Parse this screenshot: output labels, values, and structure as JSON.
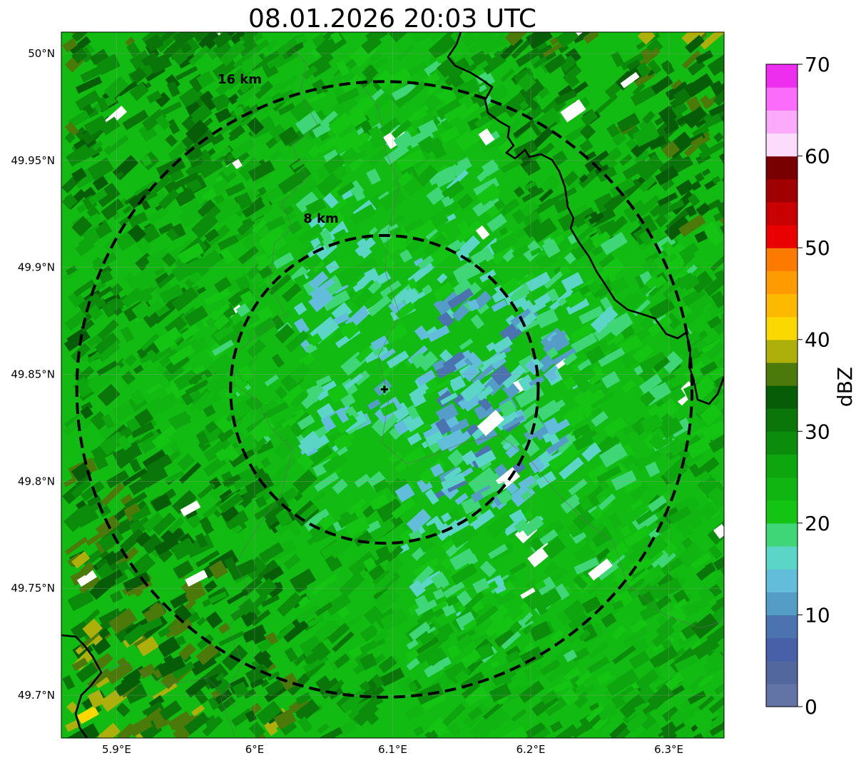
{
  "title": "08.01.2026 20:03 UTC",
  "map": {
    "lon_range": [
      5.86,
      6.34
    ],
    "lat_range": [
      49.68,
      50.01
    ],
    "lon_ticks": [
      {
        "value": 5.9,
        "label": "5.9°E"
      },
      {
        "value": 6.0,
        "label": "6°E"
      },
      {
        "value": 6.1,
        "label": "6.1°E"
      },
      {
        "value": 6.2,
        "label": "6.2°E"
      },
      {
        "value": 6.3,
        "label": "6.3°E"
      }
    ],
    "lat_ticks": [
      {
        "value": 50.0,
        "label": "50°N"
      },
      {
        "value": 49.95,
        "label": "49.95°N"
      },
      {
        "value": 49.9,
        "label": "49.9°N"
      },
      {
        "value": 49.85,
        "label": "49.85°N"
      },
      {
        "value": 49.8,
        "label": "49.8°N"
      },
      {
        "value": 49.75,
        "label": "49.75°N"
      },
      {
        "value": 49.7,
        "label": "49.7°N"
      }
    ],
    "radar_site": {
      "lon": 6.094,
      "lat": 49.843
    },
    "range_rings": [
      {
        "radius_km": 8,
        "label": "8 km"
      },
      {
        "radius_km": 16,
        "label": "16 km"
      }
    ],
    "grid": true
  },
  "colorbar": {
    "label": "dBZ",
    "min": 0,
    "max": 70,
    "step": 2.5,
    "ticks": [
      {
        "value": 0,
        "label": "0"
      },
      {
        "value": 10,
        "label": "10"
      },
      {
        "value": 20,
        "label": "20"
      },
      {
        "value": 30,
        "label": "30"
      },
      {
        "value": 40,
        "label": "40"
      },
      {
        "value": 50,
        "label": "50"
      },
      {
        "value": 60,
        "label": "60"
      },
      {
        "value": 70,
        "label": "70"
      }
    ],
    "colors": [
      "#6274a6",
      "#53679f",
      "#4760a7",
      "#4a73b0",
      "#549dc6",
      "#62bddb",
      "#5ad5c6",
      "#3ed677",
      "#13c413",
      "#11b511",
      "#0ea60e",
      "#0b8d0b",
      "#0a760a",
      "#075d07",
      "#4c7a0a",
      "#adb00a",
      "#fbd800",
      "#fdb800",
      "#fd9b00",
      "#fd7a00",
      "#e90000",
      "#c80000",
      "#a00000",
      "#790000",
      "#fcdcfc",
      "#fcabfc",
      "#fc6cfc",
      "#ee2eee"
    ]
  }
}
